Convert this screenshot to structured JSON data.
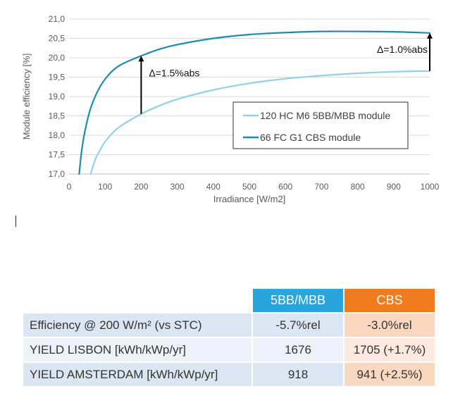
{
  "chart_data": {
    "type": "line",
    "title": "",
    "xlabel": "Irradiance [W/m2]",
    "ylabel": "Module efficiency [%]",
    "xlim": [
      0,
      1000
    ],
    "ylim": [
      17.0,
      21.0
    ],
    "x_ticks": [
      0,
      100,
      200,
      300,
      400,
      500,
      600,
      700,
      800,
      900,
      1000
    ],
    "y_ticks": [
      "17,0",
      "17,5",
      "18,0",
      "18,5",
      "19,0",
      "19,5",
      "20,0",
      "20,5",
      "21,0"
    ],
    "grid": "horizontal",
    "legend_position": "bottom-right",
    "series": [
      {
        "name": "120 HC M6 5BB/MBB module",
        "color": "#8fd0ec",
        "x": [
          60,
          70,
          80,
          100,
          125,
          150,
          200,
          250,
          300,
          400,
          500,
          600,
          700,
          800,
          900,
          1000
        ],
        "y": [
          17.0,
          17.3,
          17.52,
          17.83,
          18.1,
          18.28,
          18.55,
          18.76,
          18.93,
          19.17,
          19.34,
          19.46,
          19.54,
          19.6,
          19.64,
          19.66
        ]
      },
      {
        "name": "66 FC G1 CBS module",
        "color": "#1b8db5",
        "x": [
          28,
          35,
          45,
          60,
          80,
          100,
          125,
          150,
          200,
          250,
          300,
          400,
          500,
          600,
          700,
          800,
          900,
          1000
        ],
        "y": [
          17.0,
          17.6,
          18.15,
          18.7,
          19.15,
          19.45,
          19.7,
          19.85,
          20.05,
          20.22,
          20.34,
          20.5,
          20.6,
          20.65,
          20.68,
          20.68,
          20.67,
          20.64
        ]
      }
    ],
    "annotations": [
      {
        "text": "Δ=1.5%abs",
        "x": 200,
        "y_from": 18.55,
        "y_to": 20.05
      },
      {
        "text": "Δ=1.0%abs",
        "x": 1000,
        "y_from": 19.66,
        "y_to": 20.64
      }
    ]
  },
  "table": {
    "headers": [
      "",
      "5BB/MBB",
      "CBS"
    ],
    "rows": [
      {
        "label": "Efficiency @ 200 W/m² (vs STC)",
        "mbb": "-5.7%rel",
        "cbs": "-3.0%rel"
      },
      {
        "label": "YIELD LISBON [kWh/kWp/yr]",
        "mbb": "1676",
        "cbs": "1705 (+1.7%)"
      },
      {
        "label": "YIELD AMSTERDAM [kWh/kWp/yr]",
        "mbb": "918",
        "cbs": "941 (+2.5%)"
      }
    ],
    "colors": {
      "mbb_header": "#2aa5dc",
      "cbs_header": "#f07c1f"
    }
  }
}
